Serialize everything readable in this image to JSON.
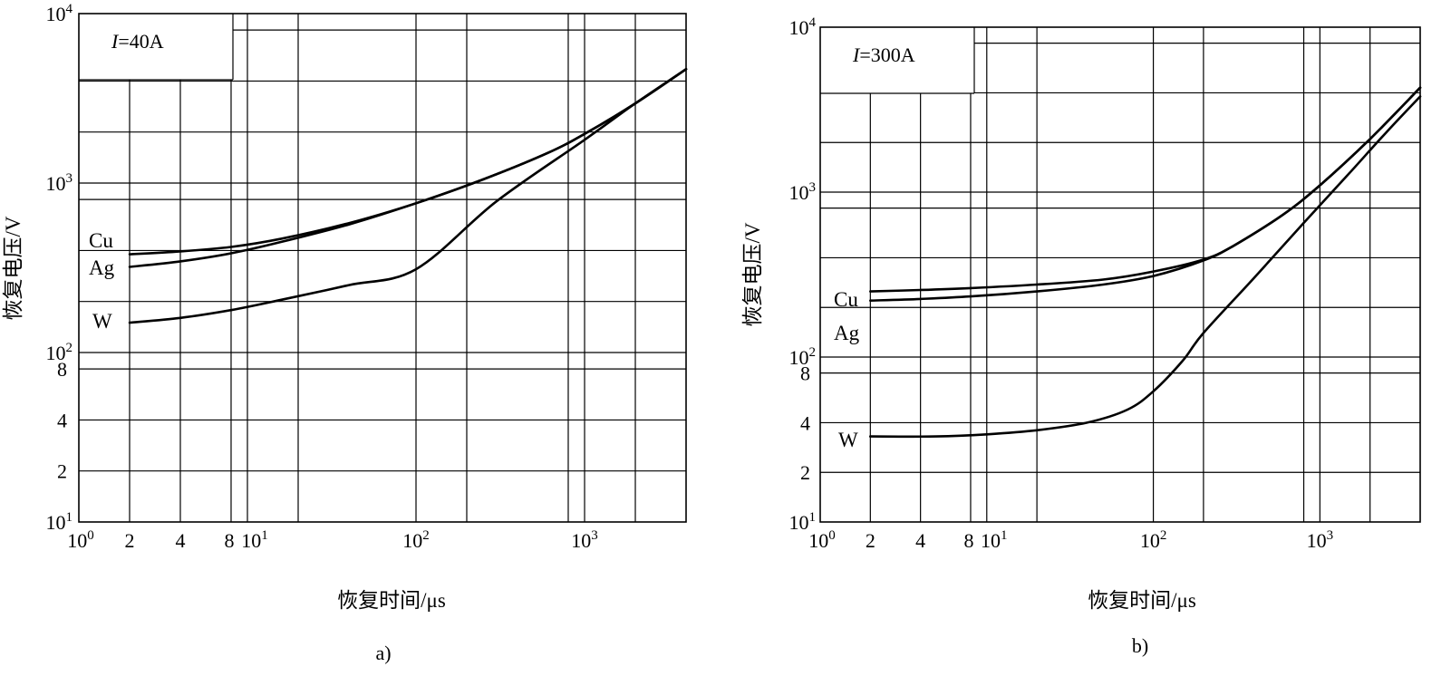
{
  "chart_data": [
    {
      "type": "line",
      "panel_label": "a)",
      "condition_label": "I = 40A",
      "xlabel": "恢复时间/μs",
      "ylabel": "恢复电压/V",
      "x_scale": "log",
      "y_scale": "log",
      "xlim": [
        1,
        4000
      ],
      "ylim": [
        10,
        10000
      ],
      "x_ticks": [
        {
          "value": 1,
          "base": "10",
          "exp": "0"
        },
        {
          "value": 2,
          "base": "2",
          "exp": ""
        },
        {
          "value": 4,
          "base": "4",
          "exp": ""
        },
        {
          "value": 8,
          "base": "8",
          "exp": ""
        },
        {
          "value": 10,
          "base": "10",
          "exp": "1"
        },
        {
          "value": 100,
          "base": "10",
          "exp": "2"
        },
        {
          "value": 1000,
          "base": "10",
          "exp": "3"
        }
      ],
      "y_ticks": [
        {
          "value": 10,
          "base": "10",
          "exp": "1"
        },
        {
          "value": 20,
          "base": "2",
          "exp": ""
        },
        {
          "value": 40,
          "base": "4",
          "exp": ""
        },
        {
          "value": 80,
          "base": "8",
          "exp": ""
        },
        {
          "value": 100,
          "base": "10",
          "exp": "2"
        },
        {
          "value": 1000,
          "base": "10",
          "exp": "3"
        },
        {
          "value": 10000,
          "base": "10",
          "exp": "4"
        }
      ],
      "series": [
        {
          "name": "Cu",
          "x": [
            2,
            4,
            8,
            16,
            40,
            100,
            250,
            600,
            1000,
            2000,
            4000
          ],
          "y": [
            380,
            395,
            420,
            470,
            580,
            760,
            1050,
            1500,
            1950,
            2950,
            4700
          ]
        },
        {
          "name": "Ag",
          "x": [
            2,
            4,
            8,
            16,
            40,
            100,
            250,
            600,
            1000,
            2000,
            4000
          ],
          "y": [
            320,
            345,
            385,
            450,
            570,
            760,
            1050,
            1500,
            1950,
            2950,
            4700
          ]
        },
        {
          "name": "W",
          "x": [
            2,
            4,
            8,
            16,
            40,
            100,
            300,
            1000,
            2000,
            4000
          ],
          "y": [
            150,
            160,
            178,
            205,
            250,
            310,
            780,
            1800,
            2950,
            4700
          ]
        }
      ]
    },
    {
      "type": "line",
      "panel_label": "b)",
      "condition_label": "I = 300A",
      "xlabel": "恢复时间/μs",
      "ylabel": "恢复电压/V",
      "x_scale": "log",
      "y_scale": "log",
      "xlim": [
        1,
        4000
      ],
      "ylim": [
        10,
        10000
      ],
      "x_ticks": [
        {
          "value": 1,
          "base": "10",
          "exp": "0"
        },
        {
          "value": 2,
          "base": "2",
          "exp": ""
        },
        {
          "value": 4,
          "base": "4",
          "exp": ""
        },
        {
          "value": 8,
          "base": "8",
          "exp": ""
        },
        {
          "value": 10,
          "base": "10",
          "exp": "1"
        },
        {
          "value": 100,
          "base": "10",
          "exp": "2"
        },
        {
          "value": 1000,
          "base": "10",
          "exp": "3"
        }
      ],
      "y_ticks": [
        {
          "value": 10,
          "base": "10",
          "exp": "1"
        },
        {
          "value": 20,
          "base": "2",
          "exp": ""
        },
        {
          "value": 40,
          "base": "4",
          "exp": ""
        },
        {
          "value": 80,
          "base": "8",
          "exp": ""
        },
        {
          "value": 100,
          "base": "10",
          "exp": "2"
        },
        {
          "value": 1000,
          "base": "10",
          "exp": "3"
        },
        {
          "value": 10000,
          "base": "10",
          "exp": "4"
        }
      ],
      "series": [
        {
          "name": "Cu",
          "x": [
            2,
            4,
            8,
            20,
            50,
            100,
            200,
            300,
            600,
            1000,
            2000,
            4000
          ],
          "y": [
            250,
            255,
            262,
            275,
            295,
            330,
            390,
            470,
            730,
            1100,
            2100,
            4300
          ]
        },
        {
          "name": "Ag",
          "x": [
            2,
            4,
            8,
            20,
            50,
            100,
            200,
            300,
            600,
            1000,
            2000,
            4000
          ],
          "y": [
            220,
            225,
            233,
            250,
            275,
            310,
            385,
            470,
            730,
            1100,
            2100,
            4300
          ]
        },
        {
          "name": "W",
          "x": [
            2,
            5,
            10,
            20,
            40,
            70,
            100,
            150,
            200,
            400,
            800,
            1500,
            2500,
            4000
          ],
          "y": [
            33,
            33,
            34,
            36,
            40,
            48,
            62,
            95,
            140,
            300,
            650,
            1300,
            2300,
            3800
          ]
        }
      ]
    }
  ]
}
